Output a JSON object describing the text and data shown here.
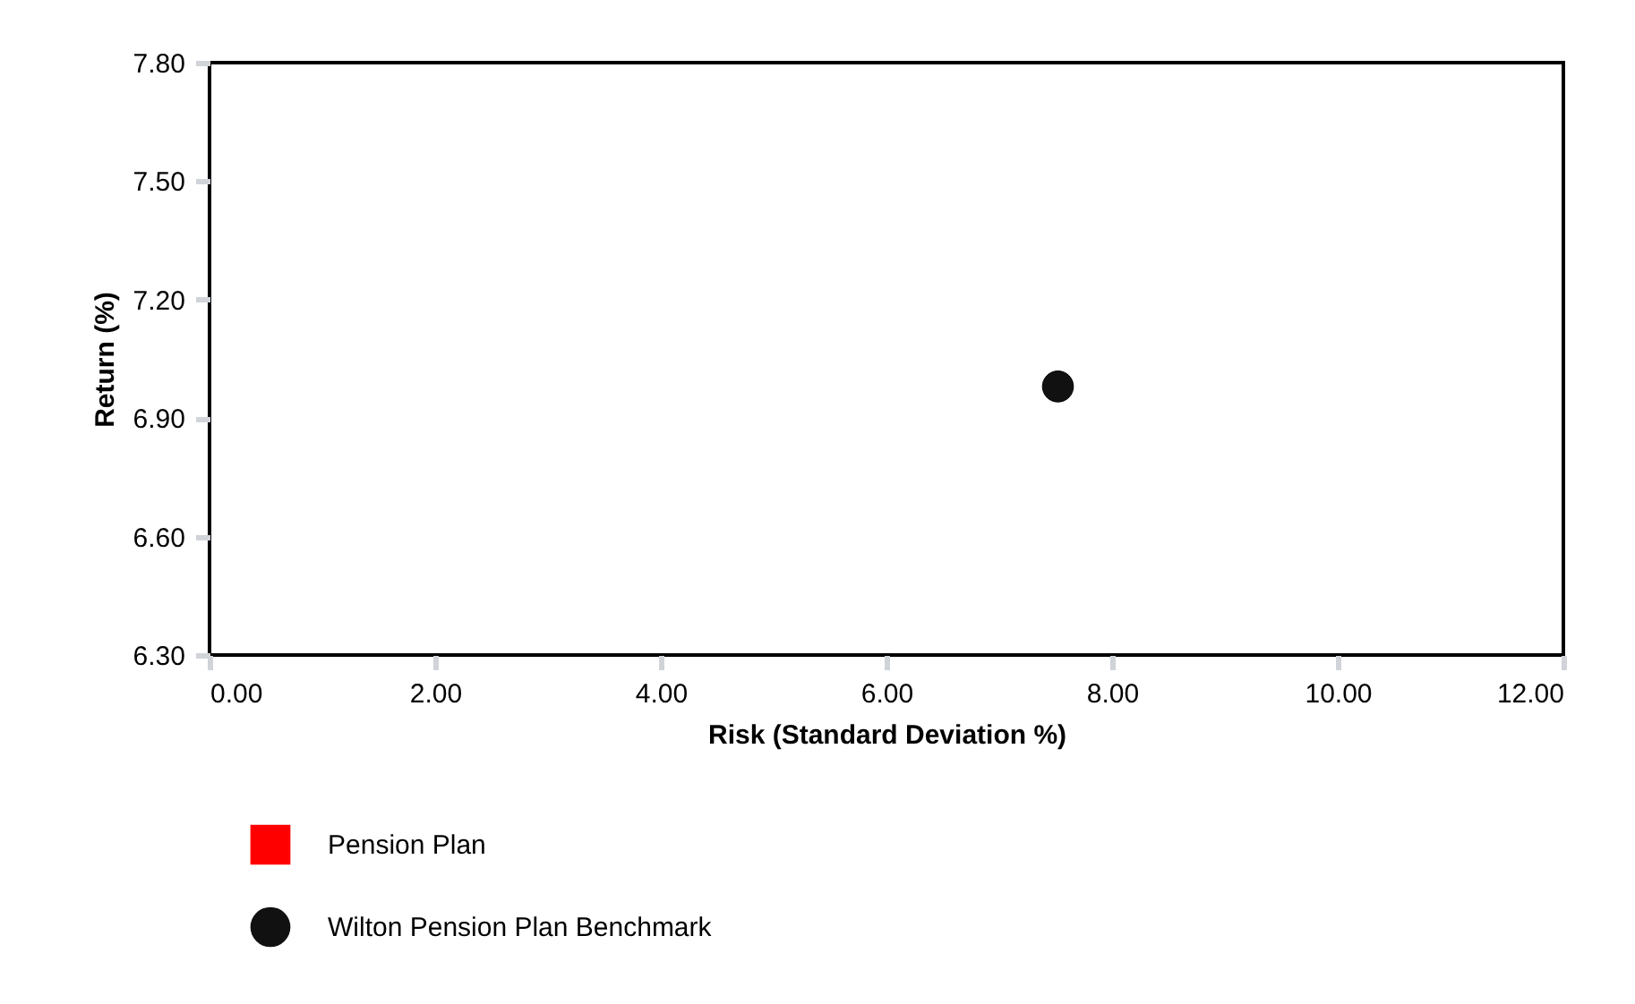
{
  "chart_data": {
    "type": "scatter",
    "xlabel": "Risk (Standard Deviation %)",
    "ylabel": "Return (%)",
    "xlim": [
      0,
      12
    ],
    "ylim": [
      6.3,
      7.8
    ],
    "xticks": [
      {
        "value": 0,
        "label": "0.00"
      },
      {
        "value": 2,
        "label": "2.00"
      },
      {
        "value": 4,
        "label": "4.00"
      },
      {
        "value": 6,
        "label": "6.00"
      },
      {
        "value": 8,
        "label": "8.00"
      },
      {
        "value": 10,
        "label": "10.00"
      },
      {
        "value": 12,
        "label": "12.00"
      }
    ],
    "yticks": [
      {
        "value": 6.3,
        "label": "6.30"
      },
      {
        "value": 6.6,
        "label": "6.60"
      },
      {
        "value": 6.9,
        "label": "6.90"
      },
      {
        "value": 7.2,
        "label": "7.20"
      },
      {
        "value": 7.5,
        "label": "7.50"
      },
      {
        "value": 7.8,
        "label": "7.80"
      }
    ],
    "grid": false,
    "legend": "bottom left",
    "series": [
      {
        "name": "Pension Plan",
        "color": "#ff0000",
        "marker": "square"
      },
      {
        "name": "Wilton Pension Plan Benchmark",
        "color": "#111111",
        "marker": "circle",
        "x": [
          7.52
        ],
        "values": [
          6.98
        ]
      }
    ]
  }
}
